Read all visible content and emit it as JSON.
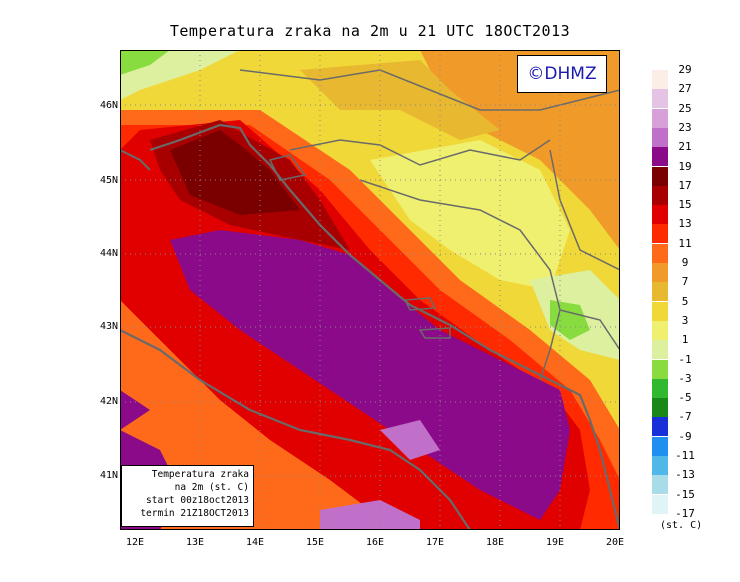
{
  "title": "Temperatura zraka na 2m u 21 UTC 18OCT2013",
  "logo": "©DHMZ",
  "infobox": [
    "Temperatura zraka",
    "na 2m (st. C)",
    "start 00z18oct2013",
    "termin 21Z18OCT2013"
  ],
  "lat_labels": [
    "46N",
    "45N",
    "44N",
    "43N",
    "42N",
    "41N"
  ],
  "lon_labels": [
    "12E",
    "13E",
    "14E",
    "15E",
    "16E",
    "17E",
    "18E",
    "19E",
    "20E"
  ],
  "legend": {
    "units": "(st. C)",
    "labels": [
      "29",
      "27",
      "25",
      "23",
      "21",
      "19",
      "17",
      "15",
      "13",
      "11",
      "9",
      "7",
      "5",
      "3",
      "1",
      "-1",
      "-3",
      "-5",
      "-7",
      "-9",
      "-11",
      "-13",
      "-15",
      "-17"
    ],
    "colors": [
      "#fbeee6",
      "#e4c3e4",
      "#d8a0d8",
      "#c070c8",
      "#8a0a8a",
      "#7a0000",
      "#a80000",
      "#e00000",
      "#ff2a00",
      "#ff6a1a",
      "#f09a2a",
      "#e8b830",
      "#f0d838",
      "#f0f070",
      "#dcf0a0",
      "#88dc40",
      "#30b830",
      "#188818",
      "#1830d8",
      "#2090f0",
      "#50b8e8",
      "#a8dce8",
      "#e0f4f8"
    ]
  }
}
